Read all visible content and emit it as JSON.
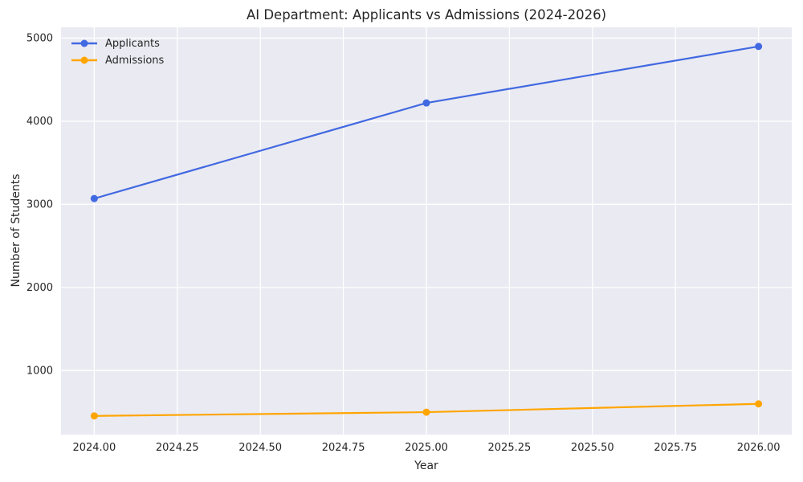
{
  "chart_data": {
    "type": "line",
    "title": "AI Department: Applicants vs Admissions (2024-2026)",
    "xlabel": "Year",
    "ylabel": "Number of Students",
    "x": [
      2024,
      2025,
      2026
    ],
    "series": [
      {
        "name": "Applicants",
        "color": "#4169e1",
        "marker": "circle",
        "values": [
          3070,
          4220,
          4900
        ]
      },
      {
        "name": "Admissions",
        "color": "#ffa500",
        "marker": "circle",
        "values": [
          455,
          500,
          600
        ]
      }
    ],
    "xlim": [
      2023.9,
      2026.1
    ],
    "ylim": [
      230,
      5130
    ],
    "xticks": {
      "values": [
        2024.0,
        2024.25,
        2024.5,
        2024.75,
        2025.0,
        2025.25,
        2025.5,
        2025.75,
        2026.0
      ],
      "labels": [
        "2024.00",
        "2024.25",
        "2024.50",
        "2024.75",
        "2025.00",
        "2025.25",
        "2025.50",
        "2025.75",
        "2026.00"
      ]
    },
    "yticks": {
      "values": [
        1000,
        2000,
        3000,
        4000,
        5000
      ],
      "labels": [
        "1000",
        "2000",
        "3000",
        "4000",
        "5000"
      ]
    },
    "grid": true,
    "legend_position": "upper-left",
    "style": {
      "plot_bg": "#eaeaf2",
      "grid_color": "#ffffff",
      "text_color": "#262626",
      "figure_bg": "#ffffff"
    }
  }
}
